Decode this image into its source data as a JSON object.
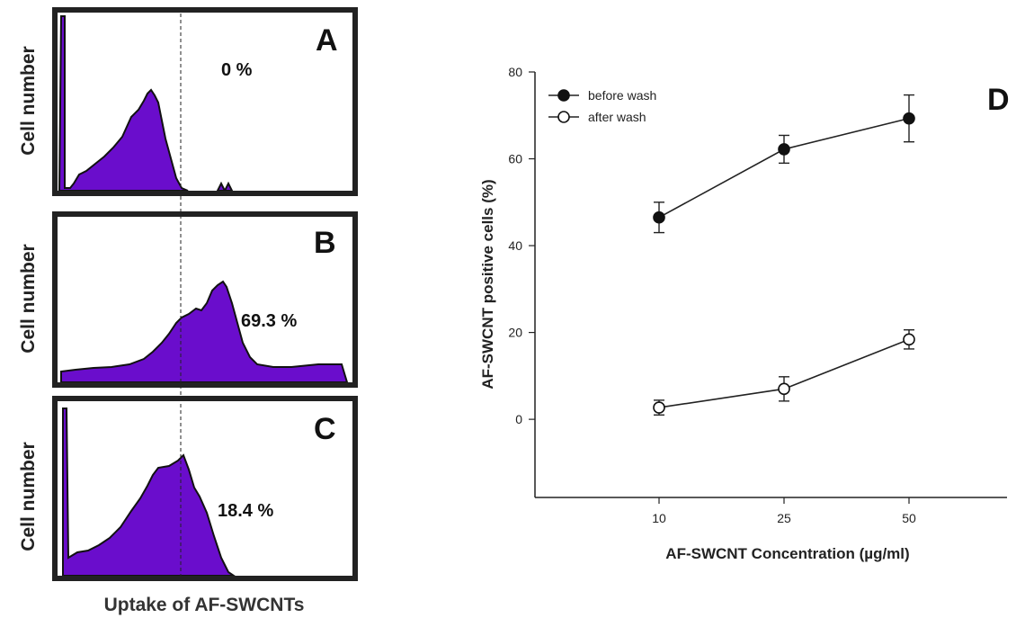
{
  "chart_data": [
    {
      "type": "histogram",
      "panel": "A",
      "percent_label": "0 %",
      "ylabel": "Cell number",
      "fill_color": "#6a0dcc"
    },
    {
      "type": "histogram",
      "panel": "B",
      "percent_label": "69.3 %",
      "ylabel": "Cell number",
      "fill_color": "#6a0dcc"
    },
    {
      "type": "histogram",
      "panel": "C",
      "percent_label": "18.4 %",
      "ylabel": "Cell number",
      "fill_color": "#6a0dcc"
    },
    {
      "type": "line",
      "panel": "D",
      "categories": [
        "10",
        "25",
        "50"
      ],
      "series": [
        {
          "name": "before wash",
          "marker": "filled-circle",
          "values": [
            46.5,
            62.2,
            69.3
          ],
          "errors": [
            3.5,
            3.2,
            5.4
          ]
        },
        {
          "name": "after wash",
          "marker": "open-circle",
          "values": [
            2.7,
            7.0,
            18.4
          ],
          "errors": [
            1.7,
            2.8,
            2.2
          ]
        }
      ],
      "xlabel": "AF-SWCNT Concentration (µg/ml)",
      "ylabel": "AF-SWCNT positive cells (%)",
      "ylim": [
        -18,
        80
      ],
      "yticks": [
        0,
        20,
        40,
        60,
        80
      ],
      "legend_position": "top-left"
    }
  ],
  "shared_xlabel": "Uptake of AF-SWCNTs"
}
